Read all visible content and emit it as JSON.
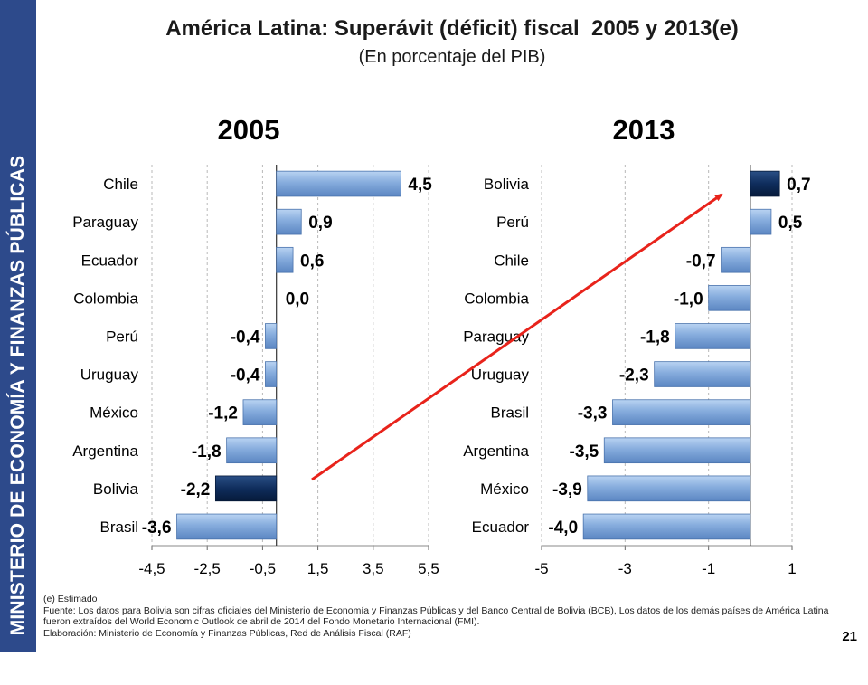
{
  "sidebar": {
    "ministry": "MINISTERIO DE ECONOMÍA Y FINANZAS PÚBLICAS"
  },
  "header": {
    "title": "América Latina: Superávit (déficit) fiscal  2005 y 2013(e)",
    "subtitle": "(En porcentaje del PIB)"
  },
  "colors": {
    "bar": "#7aa4d9",
    "highlight": "#0d2b55",
    "arrow": "#e8231b",
    "sidebar": "#2d4a8b"
  },
  "chart_data": [
    {
      "type": "bar",
      "orientation": "horizontal",
      "title": "2005",
      "categories": [
        "Chile",
        "Paraguay",
        "Ecuador",
        "Colombia",
        "Perú",
        "Uruguay",
        "México",
        "Argentina",
        "Bolivia",
        "Brasil"
      ],
      "values": [
        4.5,
        0.9,
        0.6,
        0.0,
        -0.4,
        -0.4,
        -1.2,
        -1.8,
        -2.2,
        -3.6
      ],
      "value_labels": [
        "4,5",
        "0,9",
        "0,6",
        "0,0",
        "-0,4",
        "-0,4",
        "-1,2",
        "-1,8",
        "-2,2",
        "-3,6"
      ],
      "highlight": "Bolivia",
      "xticks": [
        -4.5,
        -2.5,
        -0.5,
        1.5,
        3.5,
        5.5
      ],
      "xtick_labels": [
        "-4,5",
        "-2,5",
        "-0,5",
        "1,5",
        "3,5",
        "5,5"
      ],
      "xlim": [
        -4.5,
        5.5
      ],
      "grid": "vertical dashed"
    },
    {
      "type": "bar",
      "orientation": "horizontal",
      "title": "2013",
      "categories": [
        "Bolivia",
        "Perú",
        "Chile",
        "Colombia",
        "Paraguay",
        "Uruguay",
        "Brasil",
        "Argentina",
        "México",
        "Ecuador"
      ],
      "values": [
        0.7,
        0.5,
        -0.7,
        -1.0,
        -1.8,
        -2.3,
        -3.3,
        -3.5,
        -3.9,
        -4.0
      ],
      "value_labels": [
        "0,7",
        "0,5",
        "-0,7",
        "-1,0",
        "-1,8",
        "-2,3",
        "-3,3",
        "-3,5",
        "-3,9",
        "-4,0"
      ],
      "highlight": "Bolivia",
      "xticks": [
        -5,
        -3,
        -1,
        1
      ],
      "xtick_labels": [
        "-5",
        "-3",
        "-1",
        "1"
      ],
      "xlim": [
        -5,
        1
      ],
      "grid": "vertical dashed"
    }
  ],
  "annotation": {
    "type": "arrow",
    "from": "Bolivia 2005",
    "to": "Bolivia 2013"
  },
  "footer": {
    "note": "(e) Estimado",
    "source": "Fuente: Los datos para Bolivia son cifras oficiales del Ministerio de Economía y Finanzas Públicas y del Banco Central de Bolivia (BCB), Los datos de los demás países de América Latina fueron extraídos del World Economic Outlook de abril de 2014 del Fondo Monetario Internacional (FMI).",
    "credits": "Elaboración: Ministerio de Economía y Finanzas Públicas, Red de Análisis Fiscal (RAF)",
    "page": "21"
  }
}
